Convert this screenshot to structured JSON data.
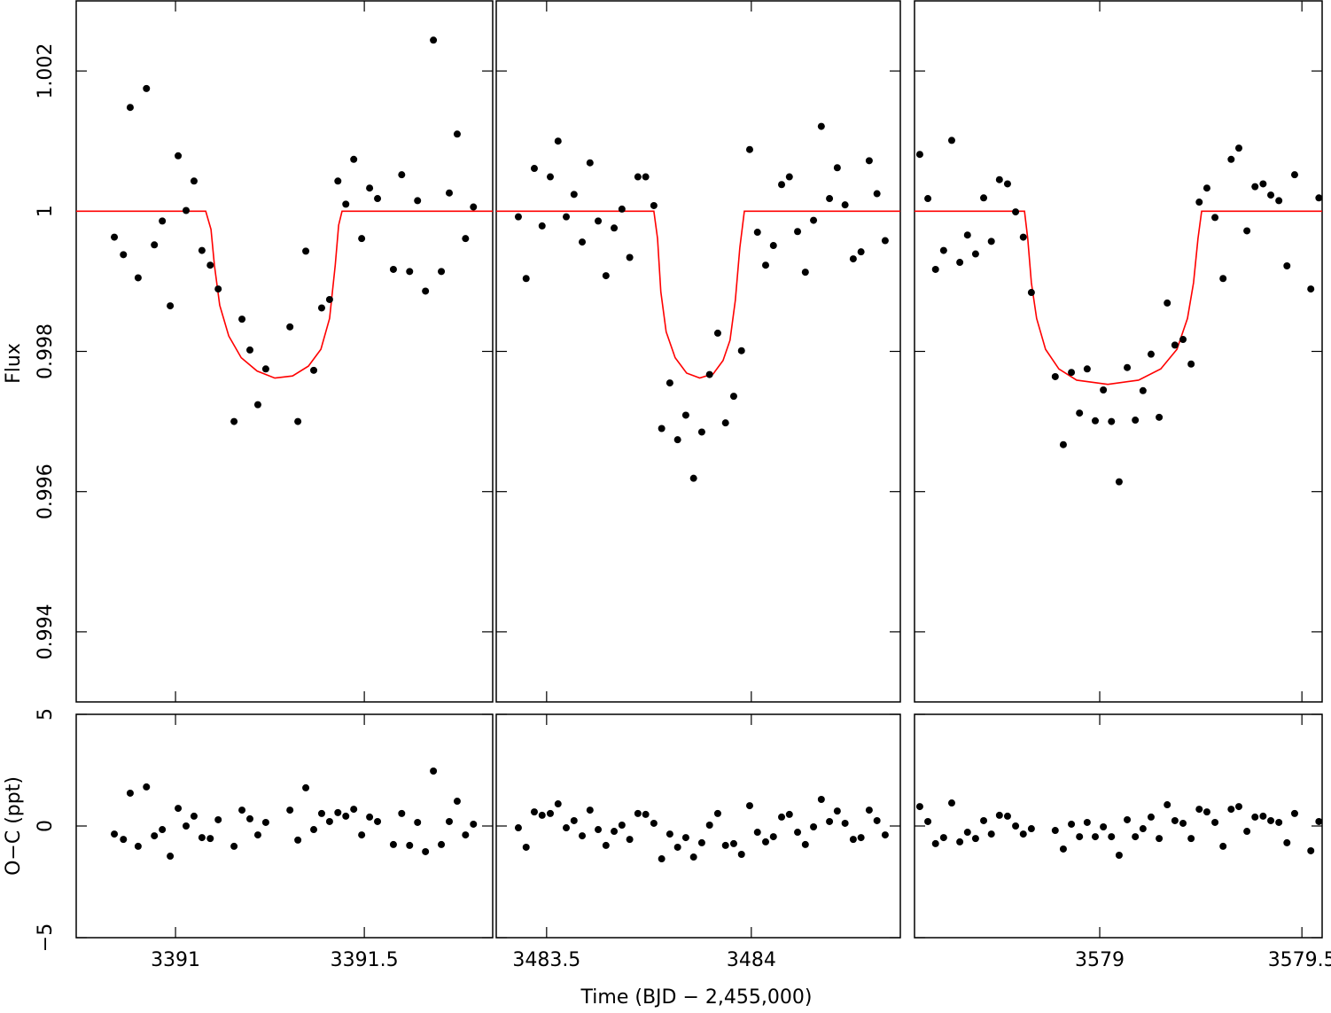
{
  "chart_data": {
    "type": "scatter",
    "xlabel": "Time (BJD − 2,455,000)",
    "ylabel": "Flux",
    "residual_ylabel": "O−C (ppt)",
    "ylim": [
      0.993,
      1.003
    ],
    "yticks": [
      0.994,
      0.996,
      0.998,
      1,
      1.002
    ],
    "residual_ylim": [
      -5,
      5
    ],
    "residual_yticks": [
      5,
      0,
      {
        "value": -5,
        "label": "−5"
      }
    ],
    "color": "#000000",
    "model_color": "#ff0000",
    "panels": [
      {
        "xlim": [
          3390.737,
          3391.84
        ],
        "xticks": [
          3391,
          3391.5
        ],
        "x": [
          3390.838,
          3390.862,
          3390.88,
          3390.901,
          3390.923,
          3390.944,
          3390.965,
          3390.986,
          3391.007,
          3391.028,
          3391.049,
          3391.07,
          3391.092,
          3391.113,
          3391.155,
          3391.176,
          3391.197,
          3391.218,
          3391.239,
          3391.303,
          3391.324,
          3391.345,
          3391.366,
          3391.387,
          3391.408,
          3391.43,
          3391.451,
          3391.472,
          3391.493,
          3391.514,
          3391.535,
          3391.577,
          3391.599,
          3391.62,
          3391.641,
          3391.662,
          3391.683,
          3391.704,
          3391.725,
          3391.746,
          3391.768,
          3391.789
        ],
        "values": [
          0.99963,
          0.99938,
          1.00148,
          0.99905,
          1.00175,
          0.99952,
          0.99986,
          0.99865,
          1.00079,
          1.00001,
          1.00043,
          0.99944,
          0.99923,
          0.99889,
          0.997,
          0.99846,
          0.99802,
          0.99724,
          0.99775,
          0.99835,
          0.997,
          0.99943,
          0.99773,
          0.99862,
          0.99874,
          1.00043,
          1.0001,
          1.00074,
          0.99961,
          1.00033,
          1.00018,
          0.99917,
          1.00052,
          0.99914,
          1.00015,
          0.99886,
          1.00244,
          0.99914,
          1.00026,
          1.0011,
          0.99961,
          1.00006
        ],
        "residuals": [
          -0.36,
          -0.6,
          1.47,
          -0.91,
          1.75,
          -0.44,
          -0.16,
          -1.35,
          0.79,
          0,
          0.44,
          -0.52,
          -0.56,
          0.28,
          -0.91,
          0.71,
          0.32,
          -0.4,
          0.16,
          0.71,
          -0.63,
          1.71,
          -0.16,
          0.56,
          0.2,
          0.6,
          0.44,
          0.75,
          -0.4,
          0.4,
          0.2,
          -0.83,
          0.56,
          -0.87,
          0.16,
          -1.15,
          2.46,
          -0.83,
          0.2,
          1.11,
          -0.4,
          0.08
        ],
        "model_x": [
          3390.737,
          3391.08,
          3391.094,
          3391.103,
          3391.117,
          3391.141,
          3391.174,
          3391.216,
          3391.263,
          3391.31,
          3391.352,
          3391.385,
          3391.408,
          3391.423,
          3391.432,
          3391.441,
          3391.84
        ],
        "model_values": [
          1,
          1,
          0.99974,
          0.99923,
          0.99866,
          0.99822,
          0.99791,
          0.99772,
          0.99762,
          0.99765,
          0.99779,
          0.99803,
          0.99847,
          0.99923,
          0.9998,
          1,
          1
        ]
      },
      {
        "xlim": [
          3483.377,
          3484.364
        ],
        "xticks": [
          3483.5,
          3484
        ],
        "x": [
          3483.431,
          3483.45,
          3483.47,
          3483.489,
          3483.509,
          3483.528,
          3483.548,
          3483.567,
          3483.587,
          3483.606,
          3483.626,
          3483.645,
          3483.665,
          3483.684,
          3483.703,
          3483.723,
          3483.742,
          3483.762,
          3483.781,
          3483.801,
          3483.82,
          3483.84,
          3483.859,
          3483.879,
          3483.898,
          3483.918,
          3483.937,
          3483.957,
          3483.976,
          3483.996,
          3484.015,
          3484.035,
          3484.054,
          3484.074,
          3484.093,
          3484.113,
          3484.132,
          3484.152,
          3484.171,
          3484.191,
          3484.21,
          3484.229,
          3484.249,
          3484.268,
          3484.288,
          3484.307,
          3484.327
        ],
        "values": [
          0.99992,
          0.99904,
          1.00061,
          0.99979,
          1.00049,
          1.001,
          0.99992,
          1.00024,
          0.99956,
          1.00069,
          0.99986,
          0.99908,
          0.99976,
          1.00003,
          0.99934,
          1.00049,
          1.00049,
          1.00008,
          0.9969,
          0.99755,
          0.99674,
          0.99709,
          0.99619,
          0.99685,
          0.99767,
          0.99826,
          0.99698,
          0.99736,
          0.99801,
          1.00088,
          0.9997,
          0.99923,
          0.99951,
          1.00038,
          1.00049,
          0.99971,
          0.99913,
          0.99987,
          1.00121,
          1.00018,
          1.00062,
          1.00009,
          0.99932,
          0.99942,
          1.00072,
          1.00025,
          0.99958
        ],
        "residuals": [
          -0.08,
          -0.95,
          0.63,
          0.48,
          0.56,
          0.99,
          -0.08,
          0.24,
          -0.44,
          0.71,
          -0.16,
          -0.87,
          -0.24,
          0.04,
          -0.6,
          0.56,
          0.52,
          0.12,
          -1.47,
          -0.36,
          -0.95,
          -0.52,
          -1.39,
          -0.75,
          0.04,
          0.56,
          -0.87,
          -0.79,
          -1.27,
          0.91,
          -0.28,
          -0.71,
          -0.48,
          0.4,
          0.52,
          -0.28,
          -0.83,
          -0.04,
          1.19,
          0.2,
          0.67,
          0.12,
          -0.6,
          -0.52,
          0.71,
          0.24,
          -0.4
        ],
        "model_x": [
          3483.377,
          3483.762,
          3483.771,
          3483.779,
          3483.792,
          3483.814,
          3483.842,
          3483.874,
          3483.907,
          3483.931,
          3483.948,
          3483.961,
          3483.972,
          3483.983,
          3484.364
        ],
        "model_values": [
          1,
          1,
          0.99961,
          0.99885,
          0.99828,
          0.99791,
          0.99769,
          0.99762,
          0.99768,
          0.99787,
          0.99816,
          0.99873,
          0.99948,
          1,
          1
        ]
      },
      {
        "xlim": [
          3578.542,
          3579.55
        ],
        "xticks": [
          3579,
          3579.5
        ],
        "x": [
          3578.555,
          3578.575,
          3578.594,
          3578.614,
          3578.634,
          3578.654,
          3578.673,
          3578.693,
          3578.713,
          3578.732,
          3578.752,
          3578.772,
          3578.792,
          3578.811,
          3578.831,
          3578.89,
          3578.91,
          3578.93,
          3578.95,
          3578.969,
          3578.989,
          3579.009,
          3579.029,
          3579.048,
          3579.068,
          3579.088,
          3579.107,
          3579.127,
          3579.147,
          3579.167,
          3579.186,
          3579.206,
          3579.226,
          3579.246,
          3579.265,
          3579.285,
          3579.305,
          3579.325,
          3579.344,
          3579.364,
          3579.384,
          3579.404,
          3579.423,
          3579.443,
          3579.463,
          3579.482,
          3579.522,
          3579.542
        ],
        "values": [
          1.00081,
          1.00018,
          0.99917,
          0.99944,
          1.00101,
          0.99927,
          0.99966,
          0.99939,
          1.00019,
          0.99957,
          1.00045,
          1.00039,
          0.99999,
          0.99963,
          0.99884,
          0.99764,
          0.99667,
          0.9977,
          0.99712,
          0.99775,
          0.99701,
          0.99745,
          0.997,
          0.99614,
          0.99777,
          0.99702,
          0.99744,
          0.99796,
          0.99706,
          0.99869,
          0.99809,
          0.99817,
          0.99782,
          1.00013,
          1.00033,
          0.99991,
          0.99904,
          1.00074,
          1.0009,
          0.99972,
          1.00035,
          1.00039,
          1.00023,
          1.00015,
          0.99922,
          1.00052,
          0.99889,
          1.00019
        ],
        "residuals": [
          0.87,
          0.2,
          -0.79,
          -0.52,
          1.03,
          -0.71,
          -0.28,
          -0.56,
          0.24,
          -0.36,
          0.48,
          0.44,
          0,
          -0.36,
          -0.12,
          -0.2,
          -1.03,
          0.08,
          -0.48,
          0.16,
          -0.48,
          -0.04,
          -0.48,
          -1.31,
          0.28,
          -0.48,
          -0.12,
          0.4,
          -0.56,
          0.95,
          0.24,
          0.12,
          -0.56,
          0.75,
          0.63,
          0.16,
          -0.91,
          0.75,
          0.87,
          -0.24,
          0.4,
          0.44,
          0.24,
          0.16,
          -0.75,
          0.56,
          -1.11,
          0.2
        ],
        "model_x": [
          3578.542,
          3578.814,
          3578.822,
          3578.831,
          3578.844,
          3578.866,
          3578.899,
          3578.943,
          3579.02,
          3579.096,
          3579.151,
          3579.191,
          3579.217,
          3579.232,
          3579.243,
          3579.252,
          3579.55
        ],
        "model_values": [
          1,
          1,
          0.99961,
          0.99898,
          0.99847,
          0.99803,
          0.99775,
          0.99759,
          0.99753,
          0.99759,
          0.99775,
          0.99803,
          0.99847,
          0.99898,
          0.99961,
          1,
          1
        ]
      }
    ]
  }
}
